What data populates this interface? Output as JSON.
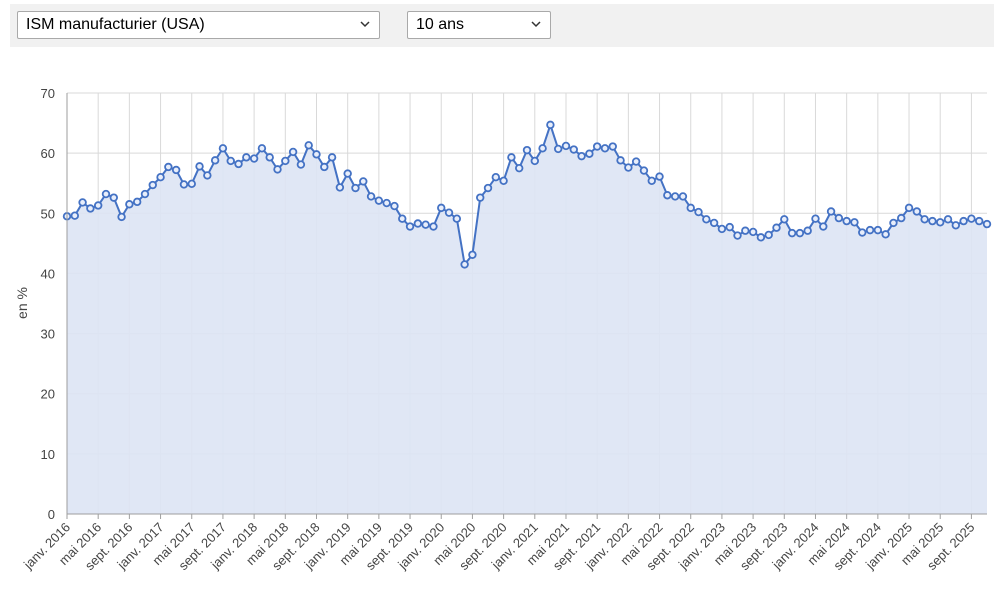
{
  "toolbar": {
    "series_select": {
      "selected": "ISM manufacturier (USA)"
    },
    "period_select": {
      "selected": "10 ans"
    }
  },
  "colors": {
    "line": "#4472c4",
    "area": "#dde4f4",
    "grid": "#d9d9d9",
    "axis": "#9e9e9e",
    "text": "#444444",
    "toolbar_bg": "#f1f1f1"
  },
  "chart_data": {
    "type": "area",
    "title": "",
    "xlabel": "",
    "ylabel": "en %",
    "ylim": [
      0,
      70
    ],
    "yticks": [
      0,
      10,
      20,
      30,
      40,
      50,
      60,
      70
    ],
    "grid": true,
    "legend": "none",
    "x_start": "2016-01",
    "x_end": "2025-11",
    "xtick_labels": [
      {
        "date": "2016-01",
        "label": "janv. 2016"
      },
      {
        "date": "2016-05",
        "label": "mai 2016"
      },
      {
        "date": "2016-09",
        "label": "sept. 2016"
      },
      {
        "date": "2017-01",
        "label": "janv. 2017"
      },
      {
        "date": "2017-05",
        "label": "mai 2017"
      },
      {
        "date": "2017-09",
        "label": "sept. 2017"
      },
      {
        "date": "2018-01",
        "label": "janv. 2018"
      },
      {
        "date": "2018-05",
        "label": "mai 2018"
      },
      {
        "date": "2018-09",
        "label": "sept. 2018"
      },
      {
        "date": "2019-01",
        "label": "janv. 2019"
      },
      {
        "date": "2019-05",
        "label": "mai 2019"
      },
      {
        "date": "2019-09",
        "label": "sept. 2019"
      },
      {
        "date": "2020-01",
        "label": "janv. 2020"
      },
      {
        "date": "2020-05",
        "label": "mai 2020"
      },
      {
        "date": "2020-09",
        "label": "sept. 2020"
      },
      {
        "date": "2021-01",
        "label": "janv. 2021"
      },
      {
        "date": "2021-05",
        "label": "mai 2021"
      },
      {
        "date": "2021-09",
        "label": "sept. 2021"
      },
      {
        "date": "2022-01",
        "label": "janv. 2022"
      },
      {
        "date": "2022-05",
        "label": "mai 2022"
      },
      {
        "date": "2022-09",
        "label": "sept. 2022"
      },
      {
        "date": "2023-01",
        "label": "janv. 2023"
      },
      {
        "date": "2023-05",
        "label": "mai 2023"
      },
      {
        "date": "2023-09",
        "label": "sept. 2023"
      },
      {
        "date": "2024-01",
        "label": "janv. 2024"
      },
      {
        "date": "2024-05",
        "label": "mai 2024"
      },
      {
        "date": "2024-09",
        "label": "sept. 2024"
      },
      {
        "date": "2025-01",
        "label": "janv. 2025"
      },
      {
        "date": "2025-05",
        "label": "mai 2025"
      },
      {
        "date": "2025-09",
        "label": "sept. 2025"
      }
    ],
    "series": [
      {
        "x": [
          "2016-01",
          "2016-02",
          "2016-03",
          "2016-04",
          "2016-05",
          "2016-06",
          "2016-07",
          "2016-08",
          "2016-09",
          "2016-10",
          "2016-11",
          "2016-12",
          "2017-01",
          "2017-02",
          "2017-03",
          "2017-04",
          "2017-05",
          "2017-06",
          "2017-07",
          "2017-08",
          "2017-09",
          "2017-10",
          "2017-11",
          "2017-12",
          "2018-01",
          "2018-02",
          "2018-03",
          "2018-04",
          "2018-05",
          "2018-06",
          "2018-07",
          "2018-08",
          "2018-09",
          "2018-10",
          "2018-11",
          "2018-12",
          "2019-01",
          "2019-02",
          "2019-03",
          "2019-04",
          "2019-05",
          "2019-06",
          "2019-07",
          "2019-08",
          "2019-09",
          "2019-10",
          "2019-11",
          "2019-12",
          "2020-01",
          "2020-02",
          "2020-03",
          "2020-04",
          "2020-05",
          "2020-06",
          "2020-07",
          "2020-08",
          "2020-09",
          "2020-10",
          "2020-11",
          "2020-12",
          "2021-01",
          "2021-02",
          "2021-03",
          "2021-04",
          "2021-05",
          "2021-06",
          "2021-07",
          "2021-08",
          "2021-09",
          "2021-10",
          "2021-11",
          "2021-12",
          "2022-01",
          "2022-02",
          "2022-03",
          "2022-04",
          "2022-05",
          "2022-06",
          "2022-07",
          "2022-08",
          "2022-09",
          "2022-10",
          "2022-11",
          "2022-12",
          "2023-01",
          "2023-02",
          "2023-03",
          "2023-04",
          "2023-05",
          "2023-06",
          "2023-07",
          "2023-08",
          "2023-09",
          "2023-10",
          "2023-11",
          "2023-12",
          "2024-01",
          "2024-02",
          "2024-03",
          "2024-04",
          "2024-05",
          "2024-06",
          "2024-07",
          "2024-08",
          "2024-09",
          "2024-10",
          "2024-11",
          "2024-12",
          "2025-01",
          "2025-02",
          "2025-03",
          "2025-04",
          "2025-05",
          "2025-06",
          "2025-07",
          "2025-08",
          "2025-09",
          "2025-10",
          "2025-11"
        ],
        "values": [
          49.5,
          49.6,
          51.8,
          50.8,
          51.3,
          53.2,
          52.6,
          49.4,
          51.5,
          51.9,
          53.2,
          54.7,
          56.0,
          57.7,
          57.2,
          54.8,
          54.9,
          57.8,
          56.3,
          58.8,
          60.8,
          58.7,
          58.2,
          59.3,
          59.1,
          60.8,
          59.3,
          57.3,
          58.7,
          60.2,
          58.1,
          61.3,
          59.8,
          57.7,
          59.3,
          54.3,
          56.6,
          54.2,
          55.3,
          52.8,
          52.1,
          51.7,
          51.2,
          49.1,
          47.8,
          48.3,
          48.1,
          47.8,
          50.9,
          50.1,
          49.1,
          41.5,
          43.1,
          52.6,
          54.2,
          56.0,
          55.4,
          59.3,
          57.5,
          60.5,
          58.7,
          60.8,
          64.7,
          60.7,
          61.2,
          60.6,
          59.5,
          59.9,
          61.1,
          60.8,
          61.1,
          58.8,
          57.6,
          58.6,
          57.1,
          55.4,
          56.1,
          53.0,
          52.8,
          52.8,
          50.9,
          50.2,
          49.0,
          48.4,
          47.4,
          47.7,
          46.3,
          47.1,
          46.9,
          46.0,
          46.4,
          47.6,
          49.0,
          46.7,
          46.7,
          47.1,
          49.1,
          47.8,
          50.3,
          49.2,
          48.7,
          48.5,
          46.8,
          47.2,
          47.2,
          46.5,
          48.4,
          49.2,
          50.9,
          50.3,
          49.0,
          48.7,
          48.5,
          49.0,
          48.0,
          48.7,
          49.1,
          48.7,
          48.2
        ]
      }
    ]
  }
}
